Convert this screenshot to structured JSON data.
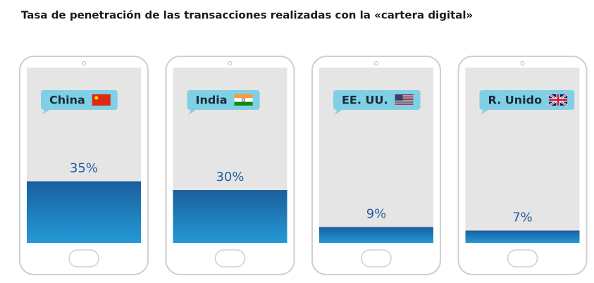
{
  "chart_data": {
    "type": "bar",
    "title": "Tasa de penetración de las transacciones realizadas con la «cartera digital»",
    "categories": [
      "China",
      "India",
      "EE. UU.",
      "R. Unido"
    ],
    "values": [
      35,
      30,
      9,
      7
    ],
    "value_labels": [
      "35%",
      "30%",
      "9%",
      "7%"
    ],
    "color": "#1a5f9e"
  }
}
